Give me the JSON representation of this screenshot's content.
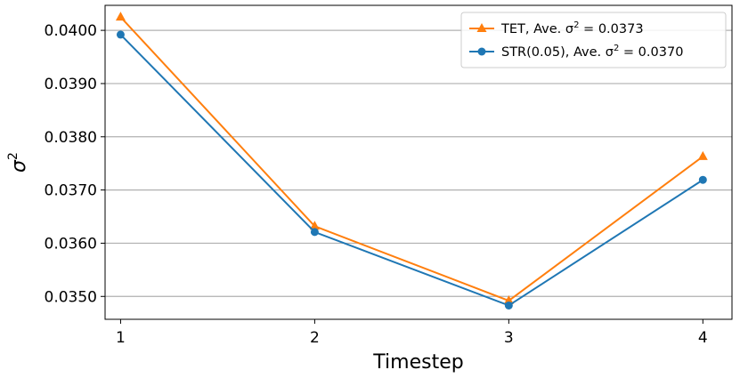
{
  "chart_data": {
    "type": "line",
    "xlabel": "Timestep",
    "ylabel": "σ²",
    "x": [
      1,
      2,
      3,
      4
    ],
    "xticks": [
      "1",
      "2",
      "3",
      "4"
    ],
    "xlim": [
      0.92,
      4.15
    ],
    "ylim": [
      0.03457,
      0.04047
    ],
    "yticks": [
      "0.0350",
      "0.0360",
      "0.0370",
      "0.0380",
      "0.0390",
      "0.0400"
    ],
    "ytick_values": [
      0.035,
      0.036,
      0.037,
      0.038,
      0.039,
      0.04
    ],
    "grid": "horizontal",
    "legend_position": "top-right",
    "series": [
      {
        "name": "TET, Ave. σ² = 0.0373",
        "legend": {
          "prefix": "TET, Ave. σ",
          "suffix": " =  0.0373"
        },
        "values": [
          0.04025,
          0.03632,
          0.03492,
          0.03763
        ],
        "color": "#ff7f0e",
        "marker": "triangle"
      },
      {
        "name": "STR(0.05), Ave. σ² = 0.0370",
        "legend": {
          "prefix": "STR(0.05), Ave. σ",
          "suffix": " =  0.0370"
        },
        "values": [
          0.03992,
          0.03621,
          0.03483,
          0.03719
        ],
        "color": "#1f77b4",
        "marker": "circle"
      }
    ]
  }
}
